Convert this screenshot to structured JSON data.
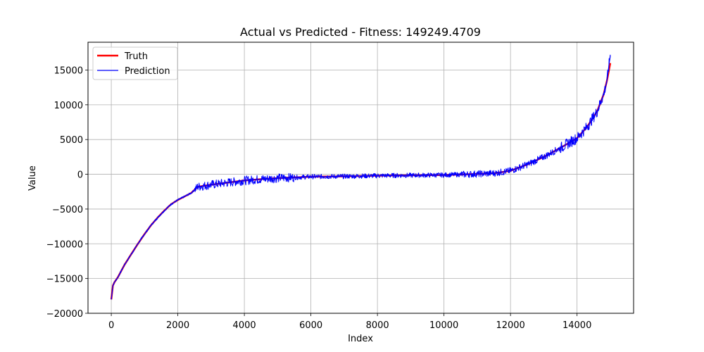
{
  "chart_data": {
    "type": "line",
    "title": "Actual vs Predicted - Fitness: 149249.4709",
    "xlabel": "Index",
    "ylabel": "Value",
    "xlim": [
      -700,
      15700
    ],
    "ylim": [
      -20000,
      19000
    ],
    "xticks": [
      0,
      2000,
      4000,
      6000,
      8000,
      10000,
      12000,
      14000
    ],
    "yticks": [
      -20000,
      -15000,
      -10000,
      -5000,
      0,
      5000,
      10000,
      15000
    ],
    "xtick_labels": [
      "0",
      "2000",
      "4000",
      "6000",
      "8000",
      "10000",
      "12000",
      "14000"
    ],
    "ytick_labels": [
      "−20000",
      "−15000",
      "−10000",
      "−5000",
      "0",
      "5000",
      "10000",
      "15000"
    ],
    "grid": true,
    "legend_position": "top-left",
    "series": [
      {
        "name": "Truth",
        "color": "#ff0000",
        "x": [
          0,
          50,
          100,
          200,
          400,
          600,
          800,
          1000,
          1200,
          1400,
          1600,
          1800,
          2000,
          2200,
          2400,
          2600,
          3000,
          3500,
          4000,
          4500,
          5000,
          5500,
          6000,
          7000,
          8000,
          9000,
          10000,
          11000,
          11500,
          12000,
          12500,
          13000,
          13500,
          14000,
          14300,
          14600,
          14800,
          14900,
          15000
        ],
        "values": [
          -18000,
          -16000,
          -15500,
          -14800,
          -13000,
          -11500,
          -10000,
          -8600,
          -7300,
          -6200,
          -5200,
          -4300,
          -3700,
          -3200,
          -2700,
          -1800,
          -1500,
          -1200,
          -900,
          -700,
          -550,
          -450,
          -350,
          -300,
          -200,
          -150,
          -100,
          50,
          150,
          500,
          1400,
          2500,
          3800,
          5200,
          6800,
          9000,
          11500,
          13500,
          16000
        ]
      },
      {
        "name": "Prediction",
        "color": "#0000ff",
        "x": [
          0,
          50,
          100,
          200,
          400,
          600,
          800,
          1000,
          1200,
          1400,
          1600,
          1800,
          2000,
          2200,
          2400,
          2600,
          3000,
          3500,
          4000,
          4500,
          5000,
          5500,
          6000,
          7000,
          8000,
          9000,
          10000,
          11000,
          11500,
          12000,
          12500,
          13000,
          13500,
          14000,
          14300,
          14600,
          14800,
          14900,
          15000
        ],
        "values": [
          -18000,
          -16000,
          -15500,
          -14800,
          -13000,
          -11500,
          -10000,
          -8600,
          -7300,
          -6200,
          -5200,
          -4300,
          -3700,
          -3200,
          -2700,
          -1800,
          -1500,
          -1200,
          -900,
          -700,
          -550,
          -450,
          -350,
          -300,
          -200,
          -150,
          -100,
          50,
          150,
          500,
          1400,
          2500,
          3800,
          5200,
          6800,
          9000,
          11500,
          13500,
          17200
        ]
      }
    ]
  }
}
